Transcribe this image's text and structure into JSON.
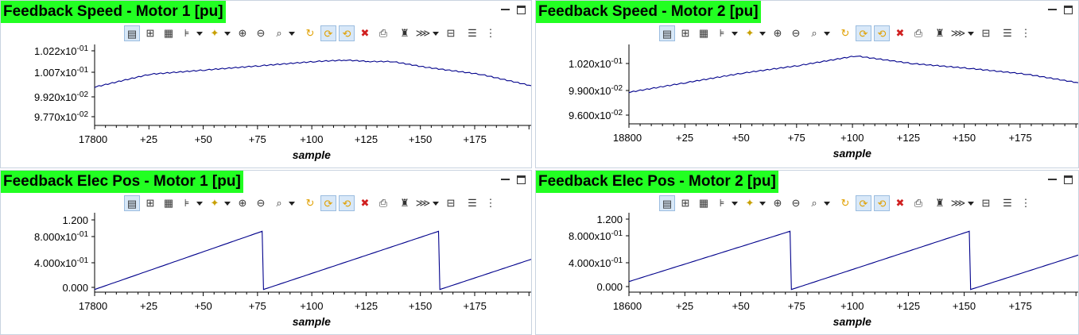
{
  "panels": [
    {
      "title": "Feedback Speed - Motor 1 [pu]",
      "xlabel": "sample",
      "xticks": [
        "17800",
        "+25",
        "+50",
        "+75",
        "+100",
        "+125",
        "+150",
        "+175"
      ],
      "yticks": [
        "1.022x10-01",
        "1.007x10-01",
        "9.920x10-02",
        "9.770x10-02"
      ],
      "ytick_values": [
        0.1022,
        0.1007,
        0.0992,
        0.0977
      ]
    },
    {
      "title": "Feedback Speed - Motor 2 [pu]",
      "xlabel": "sample",
      "xticks": [
        "18800",
        "+25",
        "+50",
        "+75",
        "+100",
        "+125",
        "+150",
        "+175"
      ],
      "yticks": [
        "1.020x10-01",
        "9.900x10-02",
        "9.600x10-02"
      ],
      "ytick_values": [
        0.102,
        0.099,
        0.096
      ]
    },
    {
      "title": "Feedback Elec Pos - Motor 1 [pu]",
      "xlabel": "sample",
      "xticks": [
        "17800",
        "+25",
        "+50",
        "+75",
        "+100",
        "+125",
        "+150",
        "+175"
      ],
      "yticks": [
        "1.200",
        "8.000x10-01",
        "4.000x10-01",
        "0.000"
      ],
      "ytick_values": [
        1.2,
        0.8,
        0.4,
        0.0
      ]
    },
    {
      "title": "Feedback Elec Pos - Motor 2 [pu]",
      "xlabel": "sample",
      "xticks": [
        "18600",
        "+25",
        "+50",
        "+75",
        "+100",
        "+125",
        "+150",
        "+175"
      ],
      "yticks": [
        "1.200",
        "8.000x10-01",
        "4.000x10-01",
        "0.000"
      ],
      "ytick_values": [
        1.2,
        0.8,
        0.4,
        0.0
      ]
    }
  ],
  "toolbar_icons": [
    "graph-properties-icon",
    "add-cursor-icon",
    "measurement-icon",
    "data-marker-icon",
    "star-marker-icon",
    "zoom-in-icon",
    "zoom-out-icon",
    "zoom-fit-icon",
    "refresh-icon",
    "continuous-refresh-icon",
    "auto-scale-icon",
    "clear-icon",
    "export-icon",
    "pin-icon",
    "data-format-icon",
    "save-icon",
    "legend-icon",
    "more-icon"
  ],
  "colors": {
    "title_bg": "#22ff22",
    "trace": "#00008b"
  },
  "chart_data": [
    {
      "type": "line",
      "title": "Feedback Speed - Motor 1 [pu]",
      "xlabel": "sample",
      "ylabel": "",
      "x_start": 17800,
      "xlim": [
        17800,
        17998
      ],
      "ylim": [
        0.0968,
        0.1025
      ],
      "x": [
        17800,
        17825,
        17850,
        17875,
        17900,
        17914,
        17925,
        17935,
        17950,
        17975,
        17998
      ],
      "y": [
        0.0995,
        0.1004,
        0.1007,
        0.101,
        0.1013,
        0.1014,
        0.1013,
        0.1013,
        0.1009,
        0.1004,
        0.0996
      ]
    },
    {
      "type": "line",
      "title": "Feedback Speed - Motor 2 [pu]",
      "xlabel": "sample",
      "ylabel": "",
      "x_start": 18800,
      "xlim": [
        18800,
        18998
      ],
      "ylim": [
        0.0952,
        0.1035
      ],
      "x": [
        18800,
        18825,
        18850,
        18875,
        18900,
        18925,
        18950,
        18975,
        18998
      ],
      "y": [
        0.0985,
        0.0995,
        0.1005,
        0.1013,
        0.1023,
        0.1015,
        0.101,
        0.1004,
        0.0995
      ]
    },
    {
      "type": "line",
      "title": "Feedback Elec Pos - Motor 1 [pu]",
      "xlabel": "sample",
      "ylabel": "",
      "x_start": 17800,
      "xlim": [
        17800,
        17998
      ],
      "ylim": [
        -0.1,
        1.4
      ],
      "x": [
        17800,
        17876,
        17876.6,
        17956,
        17956.6,
        17998
      ],
      "y": [
        -0.05,
        1.05,
        -0.05,
        1.05,
        -0.05,
        0.52
      ]
    },
    {
      "type": "line",
      "title": "Feedback Elec Pos - Motor 2 [pu]",
      "xlabel": "sample",
      "ylabel": "",
      "x_start": 18600,
      "xlim": [
        18600,
        18798
      ],
      "ylim": [
        -0.1,
        1.4
      ],
      "x": [
        18600,
        18671,
        18671.6,
        18750,
        18750.6,
        18798
      ],
      "y": [
        0.1,
        1.05,
        -0.05,
        1.05,
        -0.05,
        0.6
      ]
    }
  ]
}
